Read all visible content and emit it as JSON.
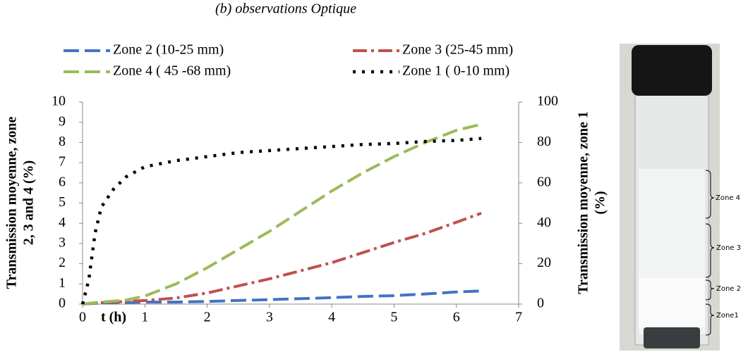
{
  "chart_data": {
    "type": "line",
    "title": "(b) observations Optique",
    "xlabel": "t (h)",
    "ylabel": [
      "Transmission moyenne, zone",
      "2, 3 and 4 (%)"
    ],
    "y2label": [
      "Transmission moyenne, zone 1",
      "(%)"
    ],
    "x": [
      0,
      0.1,
      0.2,
      0.3,
      0.5,
      0.7,
      1,
      1.5,
      2,
      2.5,
      3,
      3.5,
      4,
      4.5,
      5,
      5.5,
      6,
      6.4
    ],
    "series": [
      {
        "name": "Zone 2 (10-25 mm)",
        "color": "#4472c4",
        "style": "dash",
        "values": [
          0,
          0.02,
          0.04,
          0.05,
          0.06,
          0.08,
          0.1,
          0.1,
          0.13,
          0.18,
          0.22,
          0.27,
          0.32,
          0.38,
          0.42,
          0.5,
          0.6,
          0.65
        ]
      },
      {
        "name": "Zone 3 (25-45 mm)",
        "color": "#c0504d",
        "style": "dashdot",
        "values": [
          0,
          0.03,
          0.05,
          0.07,
          0.1,
          0.13,
          0.18,
          0.3,
          0.55,
          0.9,
          1.25,
          1.65,
          2.05,
          2.55,
          3.05,
          3.5,
          4.05,
          4.5
        ]
      },
      {
        "name": "Zone 4 ( 45 -68 mm)",
        "color": "#9bbb59",
        "style": "dash",
        "values": [
          0,
          0.04,
          0.07,
          0.1,
          0.15,
          0.2,
          0.4,
          1.0,
          1.8,
          2.7,
          3.6,
          4.6,
          5.6,
          6.5,
          7.3,
          8.0,
          8.6,
          8.9
        ]
      },
      {
        "name": "Zone 1 ( 0-10 mm)",
        "color": "#000000",
        "style": "dot",
        "axis": "y2",
        "values": [
          0,
          12,
          35,
          48,
          57,
          63,
          68,
          71,
          73,
          75,
          76,
          77,
          78,
          79,
          79.5,
          80.5,
          81,
          82
        ]
      }
    ],
    "xlim": [
      0,
      7
    ],
    "xticks": [
      0,
      1,
      2,
      3,
      4,
      5,
      6,
      7
    ],
    "ylim": [
      0,
      10
    ],
    "yticks": [
      0,
      1,
      2,
      3,
      4,
      5,
      6,
      7,
      8,
      9,
      10
    ],
    "y2lim": [
      0,
      100
    ],
    "y2ticks": [
      0,
      20,
      40,
      60,
      80,
      100
    ],
    "grid": false,
    "legend": "top"
  },
  "photo": {
    "labels": [
      "Zone 4",
      "Zone 3",
      "Zone 2",
      "Zone1"
    ]
  }
}
